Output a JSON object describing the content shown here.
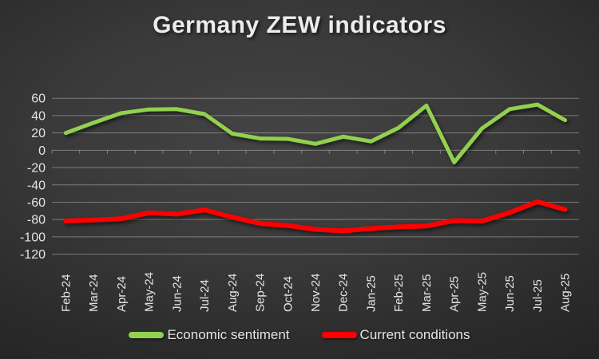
{
  "title": "Germany ZEW indicators",
  "chart_data": {
    "type": "line",
    "title": "Germany ZEW indicators",
    "categories": [
      "Feb-24",
      "Mar-24",
      "Apr-24",
      "May-24",
      "Jun-24",
      "Jul-24",
      "Aug-24",
      "Sep-24",
      "Oct-24",
      "Nov-24",
      "Dec-24",
      "Jan-25",
      "Feb-25",
      "Mar-25",
      "Apr-25",
      "May-25",
      "Jun-25",
      "Jul-25",
      "Aug-25"
    ],
    "series": [
      {
        "name": "Economic sentiment",
        "color": "#92d050",
        "stroke_width": 5,
        "values": [
          19.9,
          31.7,
          42.9,
          47.1,
          47.5,
          41.8,
          19.2,
          13.6,
          13.1,
          7.4,
          15.7,
          10.3,
          26.0,
          51.6,
          -14.0,
          25.2,
          47.5,
          52.7,
          34.7
        ]
      },
      {
        "name": "Current conditions",
        "color": "#ff0000",
        "stroke_width": 6,
        "values": [
          -81.7,
          -80.5,
          -79.2,
          -72.3,
          -73.8,
          -68.9,
          -77.3,
          -84.5,
          -86.9,
          -91.4,
          -93.1,
          -90.4,
          -88.5,
          -87.6,
          -81.2,
          -82.0,
          -72.0,
          -59.5,
          -68.6
        ]
      }
    ],
    "xlabel": "",
    "ylabel": "",
    "ylim": [
      -120,
      60
    ],
    "yticks": [
      60,
      40,
      20,
      0,
      -20,
      -40,
      -60,
      -80,
      -100,
      -120
    ],
    "grid": true,
    "legend_position": "bottom",
    "x_label_rotation": -90
  },
  "style": {
    "background_center": "#444444",
    "background_edge": "#212121",
    "gridline_color": "rgba(255,255,255,0.34)",
    "text_color": "#e4e4e4",
    "title_color": "#ececec"
  }
}
